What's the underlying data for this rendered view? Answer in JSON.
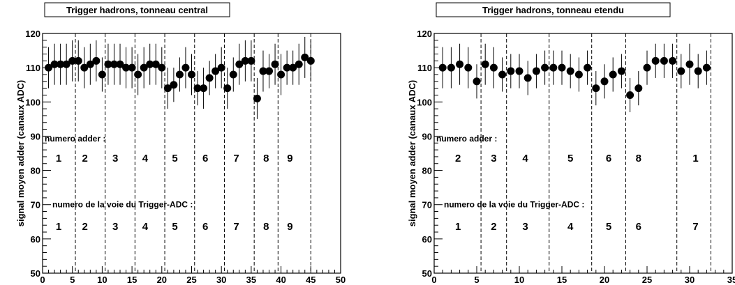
{
  "chart_data": [
    {
      "type": "scatter",
      "title": "Trigger hadrons, tonneau central",
      "xlabel": "",
      "ylabel": "signal moyen adder (canaux ADC)",
      "xlim": [
        0,
        50
      ],
      "ylim": [
        50,
        120
      ],
      "x_ticks": [
        "0",
        "5",
        "10",
        "15",
        "20",
        "25",
        "30",
        "35",
        "40",
        "45",
        "50"
      ],
      "y_ticks": [
        "50",
        "60",
        "70",
        "80",
        "90",
        "100",
        "110",
        "120"
      ],
      "grid": false,
      "boundaries": [
        5.5,
        10.5,
        15.5,
        20.5,
        25.5,
        30.5,
        35.5,
        39.5,
        45
      ],
      "label_adder": "numero adder :",
      "label_voie": "numero de la voie du Trigger-ADC :",
      "adder_numbers": [
        {
          "x": 2.7,
          "label": "1"
        },
        {
          "x": 7.1,
          "label": "2"
        },
        {
          "x": 12.2,
          "label": "3"
        },
        {
          "x": 17.2,
          "label": "4"
        },
        {
          "x": 22.2,
          "label": "5"
        },
        {
          "x": 27.3,
          "label": "6"
        },
        {
          "x": 32.5,
          "label": "7"
        },
        {
          "x": 37.5,
          "label": "8"
        },
        {
          "x": 41.5,
          "label": "9"
        }
      ],
      "voie_numbers": [
        {
          "x": 2.7,
          "label": "1"
        },
        {
          "x": 7.1,
          "label": "2"
        },
        {
          "x": 12.2,
          "label": "3"
        },
        {
          "x": 17.2,
          "label": "4"
        },
        {
          "x": 22.2,
          "label": "5"
        },
        {
          "x": 27.3,
          "label": "6"
        },
        {
          "x": 32.5,
          "label": "7"
        },
        {
          "x": 37.5,
          "label": "8"
        },
        {
          "x": 41.5,
          "label": "9"
        }
      ],
      "series": [
        {
          "x": [
            1,
            2,
            3,
            4,
            5,
            6,
            7,
            8,
            9,
            10,
            11,
            12,
            13,
            14,
            15,
            16,
            17,
            18,
            19,
            20,
            21,
            22,
            23,
            24,
            25,
            26,
            27,
            28,
            29,
            30,
            31,
            32,
            33,
            34,
            35,
            36,
            37,
            38,
            39,
            40,
            41,
            42,
            43,
            44,
            45
          ],
          "y": [
            110,
            111,
            111,
            111,
            112,
            112,
            110,
            111,
            112,
            108,
            111,
            111,
            111,
            110,
            110,
            108,
            110,
            111,
            111,
            110,
            104,
            105,
            108,
            110,
            108,
            104,
            104,
            107,
            109,
            110,
            104,
            108,
            111,
            112,
            112,
            101,
            109,
            109,
            111,
            108,
            110,
            110,
            111,
            113,
            112
          ],
          "err": [
            6,
            6,
            6,
            6,
            6,
            6,
            6,
            6,
            6,
            5,
            6,
            6,
            6,
            6,
            6,
            6,
            6,
            6,
            6,
            6,
            6,
            5,
            5,
            6,
            6,
            5,
            6,
            5,
            5,
            6,
            6,
            5,
            6,
            6,
            6,
            6,
            6,
            5,
            6,
            6,
            5,
            5,
            6,
            6,
            6
          ]
        }
      ]
    },
    {
      "type": "scatter",
      "title": "Trigger hadrons, tonneau etendu",
      "xlabel": "",
      "ylabel": "signal moyen adder (canaux ADC)",
      "xlim": [
        0,
        35
      ],
      "ylim": [
        50,
        120
      ],
      "x_ticks": [
        "0",
        "5",
        "10",
        "15",
        "20",
        "25",
        "30",
        "35"
      ],
      "y_ticks": [
        "50",
        "60",
        "70",
        "80",
        "90",
        "100",
        "110",
        "120"
      ],
      "grid": false,
      "boundaries": [
        5.5,
        8.5,
        13.5,
        18.5,
        22.5,
        28.5,
        32.5
      ],
      "label_adder": "numero adder :",
      "label_voie": "numero de la voie du Trigger-ADC :",
      "adder_numbers": [
        {
          "x": 2.8,
          "label": "2"
        },
        {
          "x": 7.0,
          "label": "3"
        },
        {
          "x": 10.7,
          "label": "4"
        },
        {
          "x": 16.0,
          "label": "5"
        },
        {
          "x": 20.5,
          "label": "6"
        },
        {
          "x": 24.0,
          "label": "8"
        },
        {
          "x": 30.7,
          "label": "1"
        }
      ],
      "voie_numbers": [
        {
          "x": 2.8,
          "label": "1"
        },
        {
          "x": 7.0,
          "label": "2"
        },
        {
          "x": 10.7,
          "label": "3"
        },
        {
          "x": 16.0,
          "label": "4"
        },
        {
          "x": 20.5,
          "label": "5"
        },
        {
          "x": 24.0,
          "label": "6"
        },
        {
          "x": 30.7,
          "label": "7"
        }
      ],
      "series": [
        {
          "x": [
            1,
            2,
            3,
            4,
            5,
            6,
            7,
            8,
            9,
            10,
            11,
            12,
            13,
            14,
            15,
            16,
            17,
            18,
            19,
            20,
            21,
            22,
            23,
            24,
            25,
            26,
            27,
            28,
            29,
            30,
            31,
            32
          ],
          "y": [
            110,
            110,
            111,
            110,
            106,
            111,
            110,
            108,
            109,
            109,
            107,
            109,
            110,
            110,
            110,
            109,
            108,
            110,
            104,
            106,
            108,
            109,
            102,
            104,
            110,
            112,
            112,
            112,
            109,
            111,
            109,
            110
          ],
          "err": [
            6,
            6,
            6,
            6,
            5,
            6,
            6,
            5,
            5,
            5,
            5,
            5,
            5,
            5,
            5,
            5,
            5,
            5,
            5,
            5,
            5,
            5,
            5,
            5,
            5,
            5,
            5,
            5,
            5,
            6,
            5,
            5
          ]
        }
      ]
    }
  ]
}
